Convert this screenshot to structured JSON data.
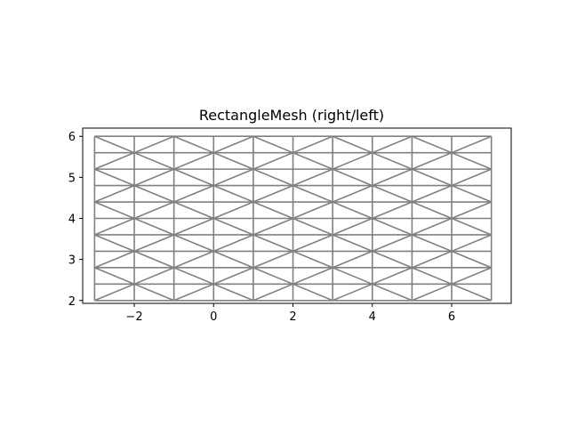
{
  "chart_data": {
    "type": "mesh",
    "title": "RectangleMesh (right/left)",
    "xlabel": "",
    "ylabel": "",
    "xlim": [
      -3.3,
      7.5
    ],
    "ylim": [
      1.93,
      6.2
    ],
    "xticks": [
      -2,
      0,
      2,
      4,
      6
    ],
    "xtick_labels": [
      "−2",
      "0",
      "2",
      "4",
      "6"
    ],
    "yticks": [
      2,
      3,
      4,
      5,
      6
    ],
    "ytick_labels": [
      "2",
      "3",
      "4",
      "5",
      "6"
    ],
    "mesh": {
      "x_min": -3,
      "x_max": 7,
      "y_min": 2,
      "y_max": 6,
      "nx": 10,
      "ny": 10,
      "diagonal": "right/left"
    },
    "grid": false,
    "line_color": "#808080",
    "axes_color": "#000000"
  }
}
